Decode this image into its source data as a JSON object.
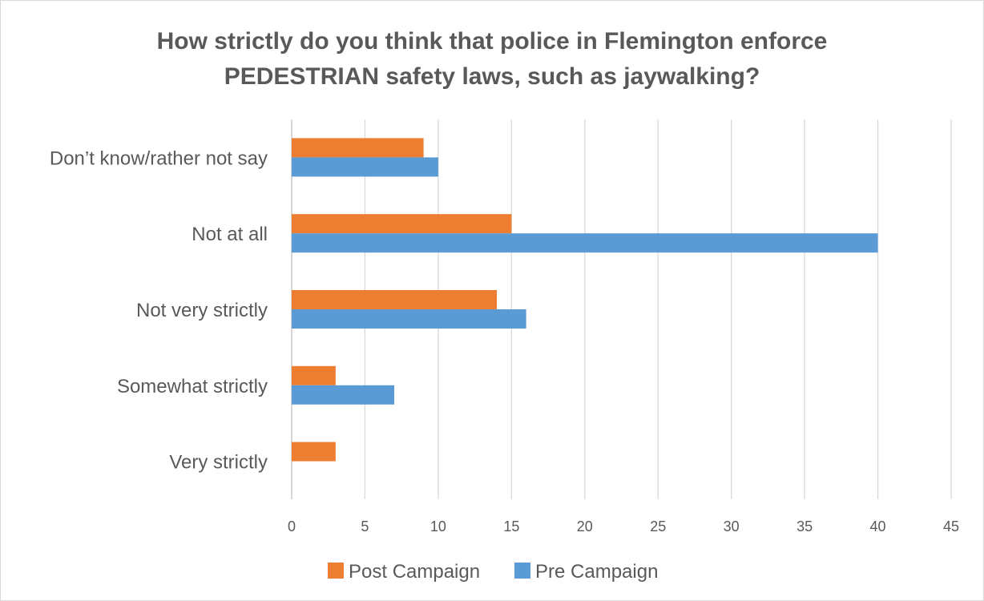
{
  "chart_data": {
    "type": "bar",
    "orientation": "horizontal",
    "title_lines": [
      "How strictly do you think that police in Flemington enforce",
      "PEDESTRIAN safety laws, such as jaywalking?"
    ],
    "categories": [
      "Don’t know/rather not say",
      "Not at all",
      "Not very strictly",
      "Somewhat strictly",
      "Very strictly"
    ],
    "series": [
      {
        "name": "Post Campaign",
        "color": "#ed7d31",
        "values": [
          9,
          15,
          14,
          3,
          3
        ]
      },
      {
        "name": "Pre Campaign",
        "color": "#5b9bd5",
        "values": [
          10,
          40,
          16,
          7,
          0
        ]
      }
    ],
    "xlim": [
      0,
      45
    ],
    "x_ticks": [
      0,
      5,
      10,
      15,
      20,
      25,
      30,
      35,
      40,
      45
    ],
    "grid": true,
    "legend_position": "bottom",
    "xlabel": "",
    "ylabel": ""
  }
}
